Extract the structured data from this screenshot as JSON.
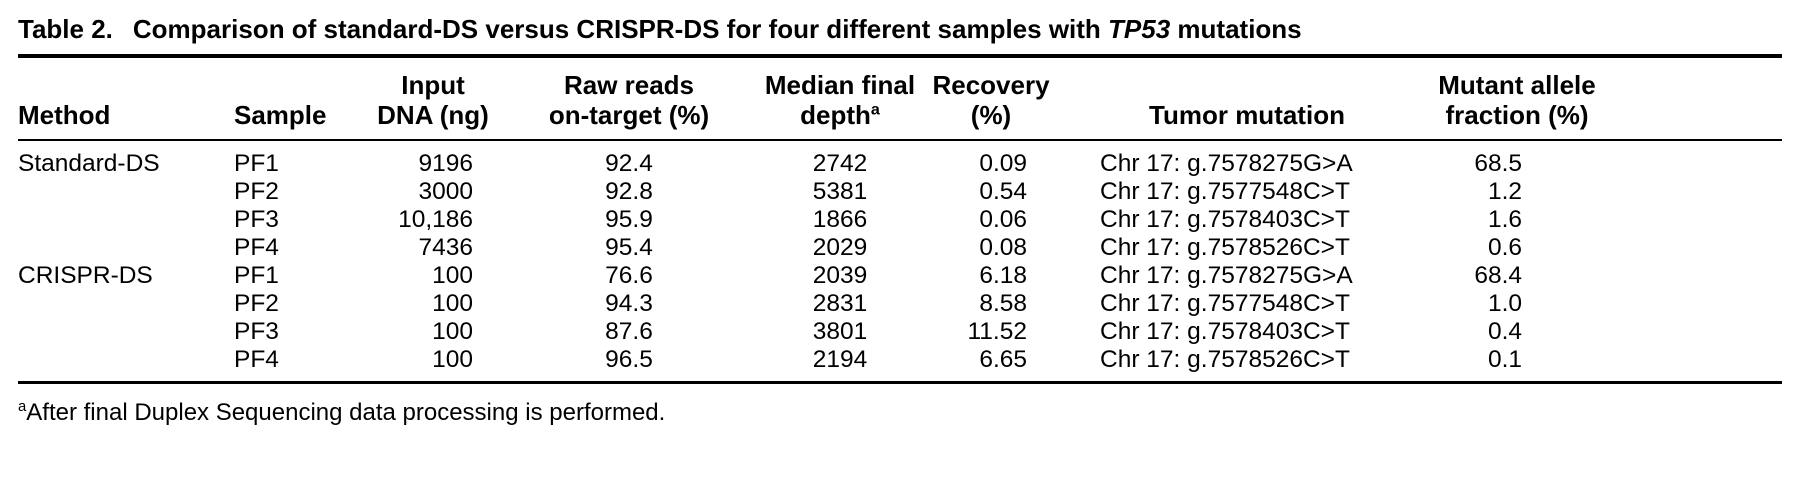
{
  "table": {
    "label": "Table 2.",
    "title_prefix": "Comparison of standard-DS versus CRISPR-DS for four different samples with ",
    "title_gene": "TP53",
    "title_suffix": " mutations",
    "columns": [
      {
        "id": "method",
        "lines": [
          "Method"
        ]
      },
      {
        "id": "sample",
        "lines": [
          "Sample"
        ]
      },
      {
        "id": "input",
        "lines": [
          "Input",
          "DNA (ng)"
        ]
      },
      {
        "id": "raw",
        "lines": [
          "Raw reads",
          "on-target (%)"
        ]
      },
      {
        "id": "median",
        "lines": [
          "Median final",
          "depth"
        ],
        "sup": "a"
      },
      {
        "id": "recovery",
        "lines": [
          "Recovery",
          "(%)"
        ]
      },
      {
        "id": "tumor",
        "lines": [
          "Tumor mutation"
        ]
      },
      {
        "id": "mutant",
        "lines": [
          "Mutant allele",
          "fraction (%)"
        ]
      }
    ],
    "rows": [
      {
        "method": "Standard-DS",
        "sample": "PF1",
        "input": "9196",
        "raw": "92.4",
        "median": "2742",
        "recovery": "0.09",
        "tumor": "Chr 17: g.7578275G>A",
        "mutant": "68.5"
      },
      {
        "method": "",
        "sample": "PF2",
        "input": "3000",
        "raw": "92.8",
        "median": "5381",
        "recovery": "0.54",
        "tumor": "Chr 17: g.7577548C>T",
        "mutant": "1.2"
      },
      {
        "method": "",
        "sample": "PF3",
        "input": "10,186",
        "raw": "95.9",
        "median": "1866",
        "recovery": "0.06",
        "tumor": "Chr 17: g.7578403C>T",
        "mutant": "1.6"
      },
      {
        "method": "",
        "sample": "PF4",
        "input": "7436",
        "raw": "95.4",
        "median": "2029",
        "recovery": "0.08",
        "tumor": "Chr 17: g.7578526C>T",
        "mutant": "0.6"
      },
      {
        "method": "CRISPR-DS",
        "sample": "PF1",
        "input": "100",
        "raw": "76.6",
        "median": "2039",
        "recovery": "6.18",
        "tumor": "Chr 17: g.7578275G>A",
        "mutant": "68.4"
      },
      {
        "method": "",
        "sample": "PF2",
        "input": "100",
        "raw": "94.3",
        "median": "2831",
        "recovery": "8.58",
        "tumor": "Chr 17: g.7577548C>T",
        "mutant": "1.0"
      },
      {
        "method": "",
        "sample": "PF3",
        "input": "100",
        "raw": "87.6",
        "median": "3801",
        "recovery": "11.52",
        "tumor": "Chr 17: g.7578403C>T",
        "mutant": "0.4"
      },
      {
        "method": "",
        "sample": "PF4",
        "input": "100",
        "raw": "96.5",
        "median": "2194",
        "recovery": "6.65",
        "tumor": "Chr 17: g.7578526C>T",
        "mutant": "0.1"
      }
    ],
    "footnote_marker": "a",
    "footnote_text": "After final Duplex Sequencing data processing is performed."
  }
}
